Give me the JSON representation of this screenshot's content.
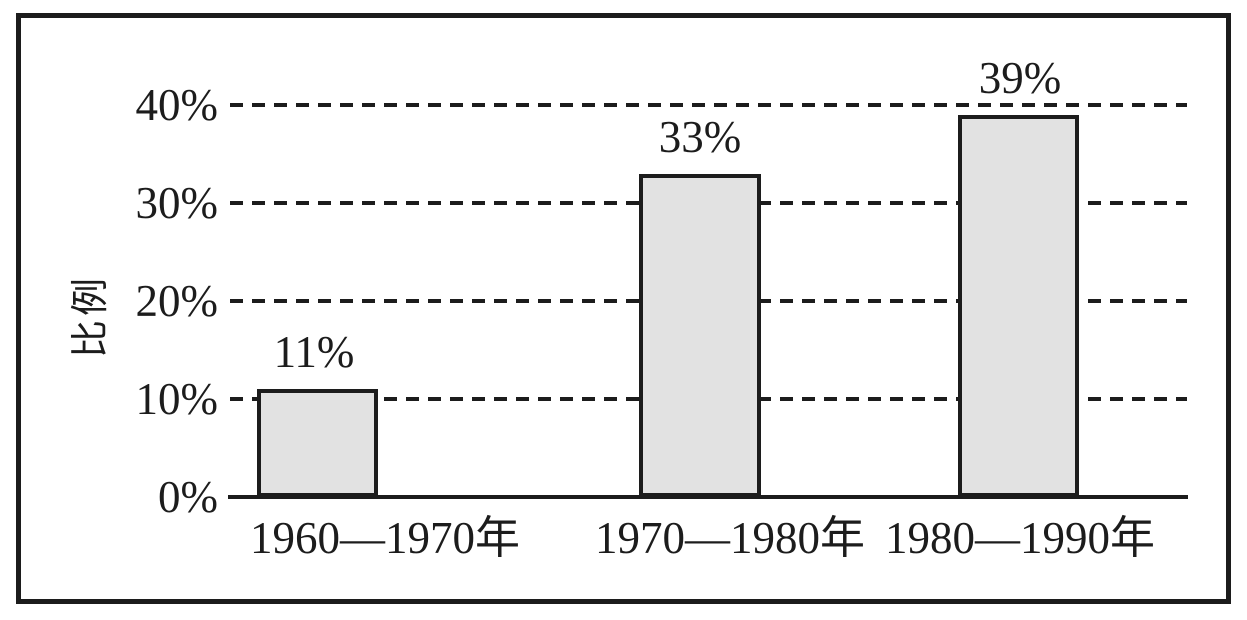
{
  "chart_data": {
    "type": "bar",
    "title": "",
    "ylabel": "比例",
    "xlabel": "",
    "categories": [
      "1960—1970年",
      "1970—1980年",
      "1980—1990年"
    ],
    "values": [
      11,
      33,
      39
    ],
    "bar_labels": [
      "11%",
      "33%",
      "39%"
    ],
    "yticks": [
      "0%",
      "10%",
      "20%",
      "30%",
      "40%"
    ],
    "ylim": [
      0,
      45
    ],
    "grid": "horizontal dashed lines at 10%, 20%, 30%, 40%",
    "legend": "none",
    "colors": {
      "bar_fill": "#e2e2e2",
      "ink": "#1c1c1c",
      "background": "#ffffff"
    }
  }
}
